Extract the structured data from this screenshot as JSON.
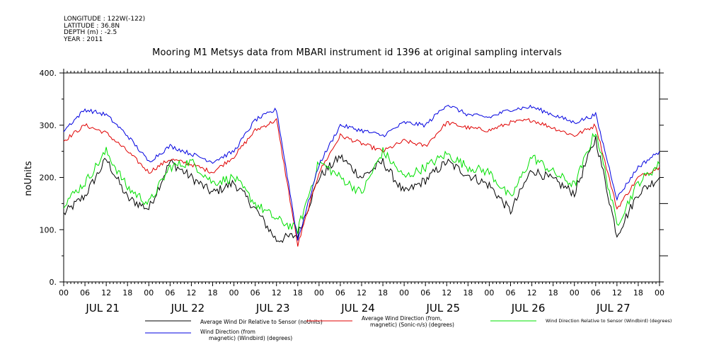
{
  "meta": {
    "longitude": "LONGITUDE : 122W(-122)",
    "latitude": "LATITUDE : 36.8N",
    "depth": "DEPTH (m) : -2.5",
    "year": "YEAR : 2011"
  },
  "chart_data": {
    "type": "line",
    "title": "Mooring M1 Metsys data from MBARI instrument id 1396 at original sampling intervals",
    "ylabel": "noUnits",
    "xlabel": "",
    "ylim": [
      0,
      400
    ],
    "yticks": [
      0,
      100,
      200,
      300,
      400
    ],
    "ytick_labels": [
      "0.",
      "100.",
      "200.",
      "300.",
      "400."
    ],
    "xlim": [
      "2011-07-21T00:00",
      "2011-07-28T00:00"
    ],
    "hour_tick_labels": [
      "00",
      "06",
      "12",
      "18",
      "00",
      "06",
      "12",
      "18",
      "00",
      "06",
      "12",
      "18",
      "00",
      "06",
      "12",
      "18",
      "00",
      "06",
      "12",
      "18",
      "00",
      "06",
      "12",
      "18",
      "00",
      "06",
      "12",
      "18",
      "00"
    ],
    "day_labels": [
      "JUL 21",
      "JUL 22",
      "JUL 23",
      "JUL 24",
      "JUL 25",
      "JUL 26",
      "JUL 27"
    ],
    "grid": false,
    "legend_position": "bottom",
    "colors": {
      "black": "#000000",
      "red": "#e00000",
      "green": "#00e000",
      "blue": "#0000e0"
    },
    "series": [
      {
        "name": "Average Wind Dir Relative to Sensor (noUnits)",
        "color": "#000000",
        "x": [
          "2011-07-21T00:00",
          "2011-07-21T06:00",
          "2011-07-21T12:00",
          "2011-07-21T18:00",
          "2011-07-22T00:00",
          "2011-07-22T06:00",
          "2011-07-22T12:00",
          "2011-07-22T18:00",
          "2011-07-23T00:00",
          "2011-07-23T06:00",
          "2011-07-23T12:00",
          "2011-07-23T18:00",
          "2011-07-24T00:00",
          "2011-07-24T06:00",
          "2011-07-24T12:00",
          "2011-07-24T18:00",
          "2011-07-25T00:00",
          "2011-07-25T06:00",
          "2011-07-25T12:00",
          "2011-07-25T18:00",
          "2011-07-26T00:00",
          "2011-07-26T06:00",
          "2011-07-26T12:00",
          "2011-07-26T18:00",
          "2011-07-27T00:00",
          "2011-07-27T06:00",
          "2011-07-27T12:00",
          "2011-07-27T18:00",
          "2011-07-28T00:00"
        ],
        "values": [
          130,
          165,
          235,
          160,
          140,
          230,
          200,
          170,
          190,
          140,
          80,
          90,
          200,
          240,
          200,
          230,
          170,
          195,
          230,
          205,
          185,
          135,
          215,
          195,
          170,
          275,
          90,
          170,
          200
        ]
      },
      {
        "name": "Average Wind Direction (from, magnetic) (Sonic-n/s) (degrees)",
        "color": "#e00000",
        "x": [
          "2011-07-21T00:00",
          "2011-07-21T06:00",
          "2011-07-21T12:00",
          "2011-07-21T18:00",
          "2011-07-22T00:00",
          "2011-07-22T06:00",
          "2011-07-22T12:00",
          "2011-07-22T18:00",
          "2011-07-23T00:00",
          "2011-07-23T06:00",
          "2011-07-23T12:00",
          "2011-07-23T18:00",
          "2011-07-24T00:00",
          "2011-07-24T06:00",
          "2011-07-24T12:00",
          "2011-07-24T18:00",
          "2011-07-25T00:00",
          "2011-07-25T06:00",
          "2011-07-25T12:00",
          "2011-07-25T18:00",
          "2011-07-26T00:00",
          "2011-07-26T06:00",
          "2011-07-26T12:00",
          "2011-07-26T18:00",
          "2011-07-27T00:00",
          "2011-07-27T06:00",
          "2011-07-27T12:00",
          "2011-07-27T18:00",
          "2011-07-28T00:00"
        ],
        "values": [
          270,
          300,
          285,
          250,
          210,
          235,
          225,
          210,
          240,
          290,
          310,
          70,
          210,
          280,
          265,
          250,
          270,
          260,
          305,
          295,
          290,
          305,
          310,
          295,
          280,
          300,
          140,
          200,
          220
        ]
      },
      {
        "name": "Wind Direction Relative to Sensor (Windbird) (degrees)",
        "color": "#00e000",
        "x": [
          "2011-07-21T00:00",
          "2011-07-21T06:00",
          "2011-07-21T12:00",
          "2011-07-21T18:00",
          "2011-07-22T00:00",
          "2011-07-22T06:00",
          "2011-07-22T12:00",
          "2011-07-22T18:00",
          "2011-07-23T00:00",
          "2011-07-23T06:00",
          "2011-07-23T12:00",
          "2011-07-23T18:00",
          "2011-07-24T00:00",
          "2011-07-24T06:00",
          "2011-07-24T12:00",
          "2011-07-24T18:00",
          "2011-07-25T00:00",
          "2011-07-25T06:00",
          "2011-07-25T12:00",
          "2011-07-25T18:00",
          "2011-07-26T00:00",
          "2011-07-26T06:00",
          "2011-07-26T12:00",
          "2011-07-26T18:00",
          "2011-07-27T00:00",
          "2011-07-27T06:00",
          "2011-07-27T12:00",
          "2011-07-27T18:00",
          "2011-07-28T00:00"
        ],
        "values": [
          150,
          190,
          250,
          180,
          150,
          220,
          230,
          190,
          200,
          150,
          120,
          100,
          230,
          200,
          170,
          250,
          200,
          220,
          245,
          220,
          210,
          160,
          240,
          210,
          185,
          290,
          110,
          190,
          225
        ]
      },
      {
        "name": "Wind Direction (from, magnetic) (Windbird) (degrees)",
        "color": "#0000e0",
        "x": [
          "2011-07-21T00:00",
          "2011-07-21T06:00",
          "2011-07-21T12:00",
          "2011-07-21T18:00",
          "2011-07-22T00:00",
          "2011-07-22T06:00",
          "2011-07-22T12:00",
          "2011-07-22T18:00",
          "2011-07-23T00:00",
          "2011-07-23T06:00",
          "2011-07-23T12:00",
          "2011-07-23T18:00",
          "2011-07-24T00:00",
          "2011-07-24T06:00",
          "2011-07-24T12:00",
          "2011-07-24T18:00",
          "2011-07-25T00:00",
          "2011-07-25T06:00",
          "2011-07-25T12:00",
          "2011-07-25T18:00",
          "2011-07-26T00:00",
          "2011-07-26T06:00",
          "2011-07-26T12:00",
          "2011-07-26T18:00",
          "2011-07-27T00:00",
          "2011-07-27T06:00",
          "2011-07-27T12:00",
          "2011-07-27T18:00",
          "2011-07-28T00:00"
        ],
        "values": [
          290,
          330,
          320,
          280,
          230,
          260,
          245,
          230,
          250,
          310,
          330,
          80,
          225,
          300,
          290,
          280,
          305,
          300,
          340,
          320,
          315,
          330,
          335,
          320,
          305,
          320,
          160,
          220,
          250
        ]
      }
    ],
    "legend_labels": [
      {
        "line1": "Average Wind Dir Relative to Sensor (noUnits)",
        "line2": ""
      },
      {
        "line1": "Average Wind Direction (from,",
        "line2": "magnetic) (Sonic-n/s) (degrees)"
      },
      {
        "line1": "Wind Direction Relative to Sensor (Windbird) (degrees)",
        "line2": ""
      },
      {
        "line1": "Wind Direction (from",
        "line2": "magnetic) (Windbird) (degrees)"
      }
    ]
  }
}
